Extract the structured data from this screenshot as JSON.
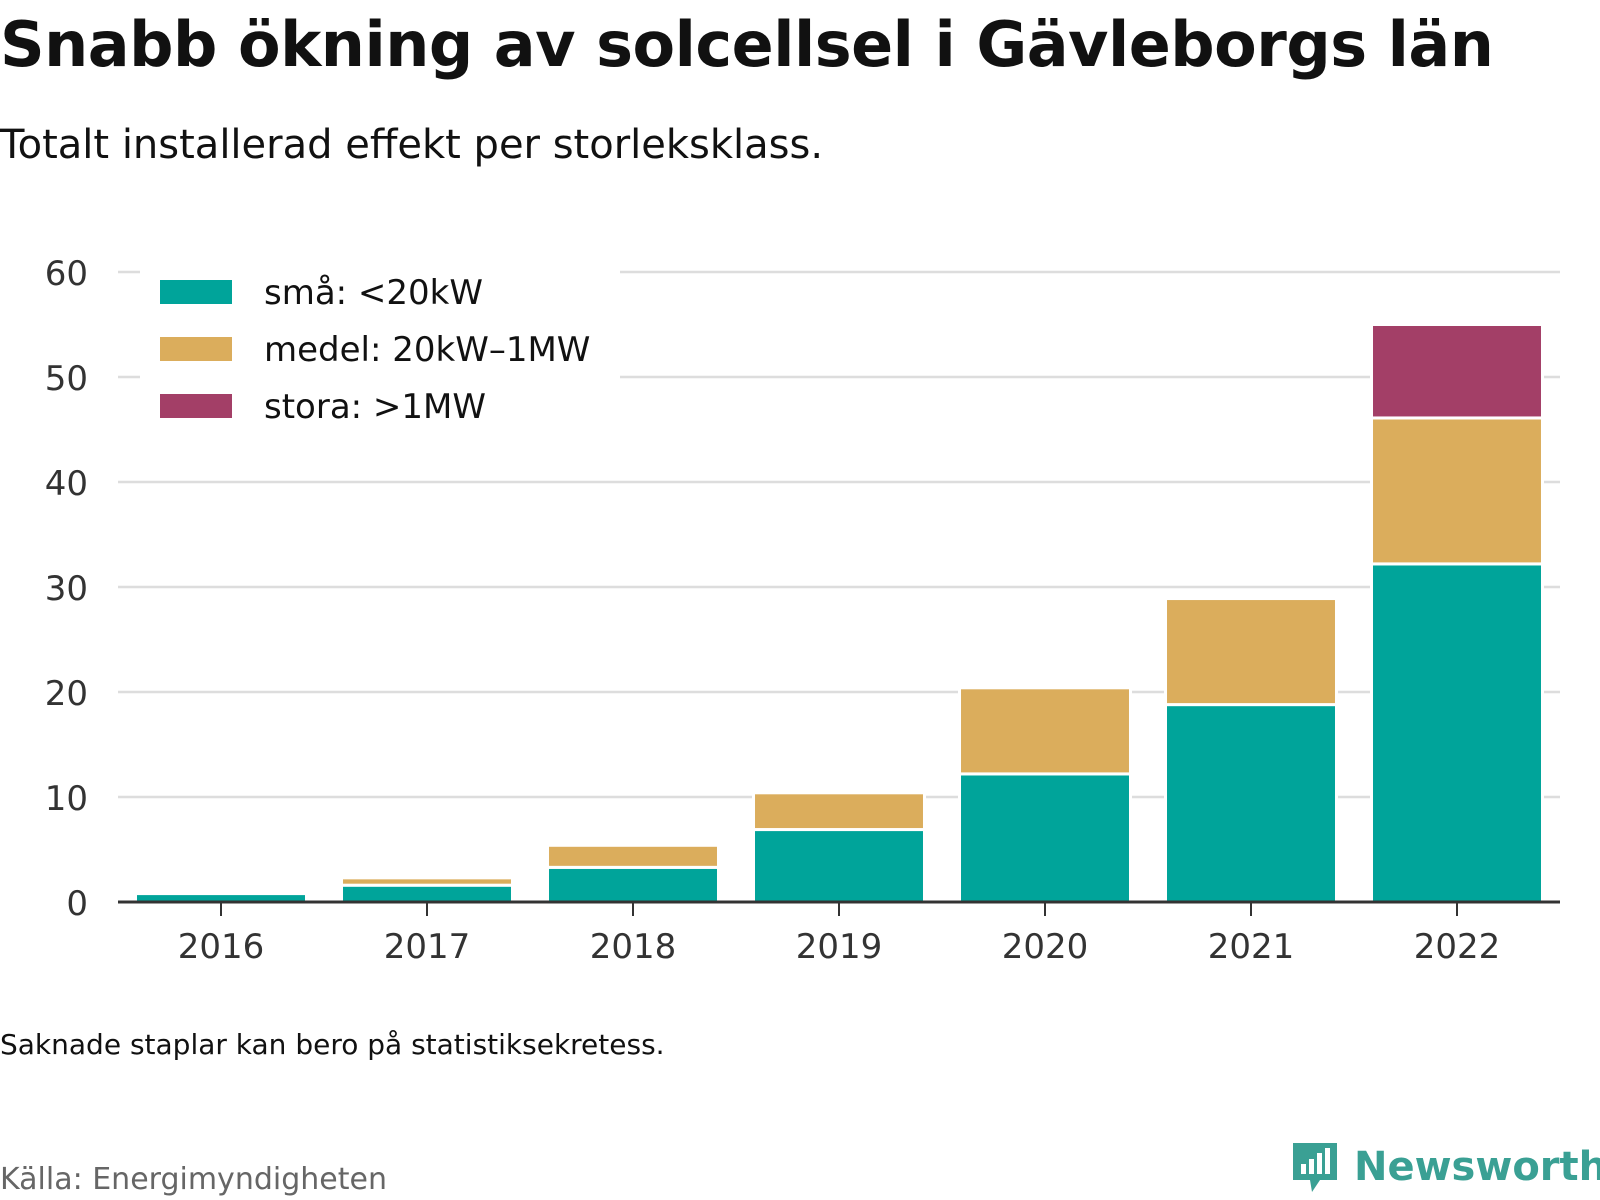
{
  "title": "Snabb ökning av solcellsel i Gävleborgs län",
  "subtitle": "Totalt installerad effekt per storleksklass.",
  "note": "Saknade staplar kan bero på statistiksekretess.",
  "source": "Källa: Energimyndigheten",
  "brand": "Newsworthy",
  "colors": {
    "small": "#00a49a",
    "medium": "#dbad5c",
    "large": "#a33f67",
    "grid": "#dddddd",
    "axis": "#333333",
    "brand": "#3aa094"
  },
  "chart_data": {
    "type": "bar",
    "stacked": true,
    "title": "Snabb ökning av solcellsel i Gävleborgs län",
    "subtitle": "Totalt installerad effekt per storleksklass.",
    "xlabel": "",
    "ylabel": "",
    "categories": [
      "2016",
      "2017",
      "2018",
      "2019",
      "2020",
      "2021",
      "2022"
    ],
    "series": [
      {
        "name": "små: <20kW",
        "color": "#00a49a",
        "values": [
          0.8,
          1.6,
          3.3,
          6.9,
          12.2,
          18.8,
          32.2
        ]
      },
      {
        "name": "medel: 20kW–1MW",
        "color": "#dbad5c",
        "values": [
          0,
          0.7,
          2.1,
          3.5,
          8.2,
          10.1,
          13.9
        ]
      },
      {
        "name": "stora: >1MW",
        "color": "#a33f67",
        "values": [
          0,
          0,
          0,
          0,
          0,
          0,
          8.9
        ]
      }
    ],
    "ylim": [
      0,
      60
    ],
    "yticks": [
      0,
      10,
      20,
      30,
      40,
      50,
      60
    ],
    "grid": true,
    "legend": "top-left"
  }
}
